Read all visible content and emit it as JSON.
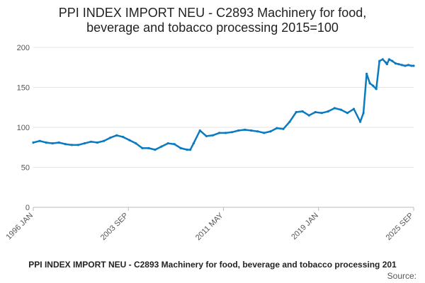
{
  "chart_data": {
    "type": "line",
    "title_lines": [
      "PPI INDEX IMPORT NEU - C2893 Machinery for food,",
      "beverage and tobacco processing 2015=100"
    ],
    "ylim": [
      0,
      200
    ],
    "y_ticks": [
      "0",
      "50",
      "100",
      "150",
      "200"
    ],
    "x_tick_labels": [
      "1996 JAN",
      "2003 SEP",
      "2011 MAY",
      "2019 JAN",
      "2025 SEP"
    ],
    "x_range": [
      "1996-01",
      "2025-09"
    ],
    "grid": true,
    "line_color": "#0a7bc0",
    "footer": "PPI INDEX IMPORT NEU - C2893 Machinery for food, beverage and tobacco processing 201",
    "source_label": "Source:",
    "series": [
      {
        "x": [
          "1996-01",
          "1996-07",
          "1997-01",
          "1997-07",
          "1998-01",
          "1998-07",
          "1999-01",
          "1999-07",
          "2000-01",
          "2000-07",
          "2001-01",
          "2001-07",
          "2002-01",
          "2002-07",
          "2003-01",
          "2003-07",
          "2004-01",
          "2004-07",
          "2005-01",
          "2005-07",
          "2006-01",
          "2006-07",
          "2007-01",
          "2007-07",
          "2008-01",
          "2008-04",
          "2008-07",
          "2009-01",
          "2009-07",
          "2010-01",
          "2010-07",
          "2011-01",
          "2011-07",
          "2012-01",
          "2012-07",
          "2013-01",
          "2013-07",
          "2014-01",
          "2014-07",
          "2015-01",
          "2015-07",
          "2016-01",
          "2016-07",
          "2017-01",
          "2017-07",
          "2018-01",
          "2018-07",
          "2019-01",
          "2019-07",
          "2020-01",
          "2020-07",
          "2021-01",
          "2021-07",
          "2021-10",
          "2022-01",
          "2022-04",
          "2022-07",
          "2022-10",
          "2023-01",
          "2023-04",
          "2023-07",
          "2023-08",
          "2023-10",
          "2024-01",
          "2024-04",
          "2024-07",
          "2024-10",
          "2025-01",
          "2025-04",
          "2025-07",
          "2025-09"
        ],
        "values": [
          81,
          83,
          81,
          80,
          81,
          79,
          78,
          78,
          80,
          82,
          81,
          83,
          87,
          90,
          88,
          84,
          80,
          74,
          74,
          72,
          76,
          80,
          79,
          74,
          72,
          72,
          80,
          96,
          89,
          90,
          93,
          93,
          94,
          96,
          97,
          96,
          95,
          93,
          95,
          99,
          98,
          107,
          119,
          120,
          115,
          119,
          118,
          120,
          124,
          122,
          118,
          123,
          107,
          118,
          167,
          155,
          152,
          148,
          183,
          185,
          181,
          179,
          185,
          183,
          180,
          179,
          178,
          177,
          178,
          177,
          177
        ]
      }
    ]
  }
}
